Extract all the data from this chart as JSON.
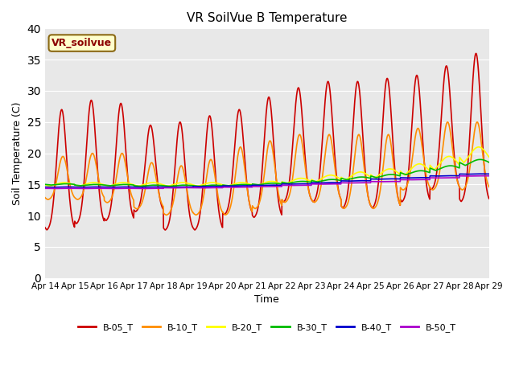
{
  "title": "VR SoilVue B Temperature",
  "xlabel": "Time",
  "ylabel": "Soil Temperature (C)",
  "ylim": [
    0,
    40
  ],
  "yticks": [
    0,
    5,
    10,
    15,
    20,
    25,
    30,
    35,
    40
  ],
  "background_color": "#e8e8e8",
  "legend_label": "VR_soilvue",
  "series": {
    "B-05_T": {
      "color": "#cc0000",
      "linewidth": 1.2
    },
    "B-10_T": {
      "color": "#ff8c00",
      "linewidth": 1.2
    },
    "B-20_T": {
      "color": "#ffff00",
      "linewidth": 1.2
    },
    "B-30_T": {
      "color": "#00bb00",
      "linewidth": 1.2
    },
    "B-40_T": {
      "color": "#0000cc",
      "linewidth": 1.2
    },
    "B-50_T": {
      "color": "#aa00cc",
      "linewidth": 1.2
    }
  },
  "xtick_labels": [
    "Apr 14",
    "Apr 15",
    "Apr 16",
    "Apr 17",
    "Apr 18",
    "Apr 19",
    "Apr 20",
    "Apr 21",
    "Apr 22",
    "Apr 23",
    "Apr 24",
    "Apr 25",
    "Apr 26",
    "Apr 27",
    "Apr 28",
    "Apr 29"
  ],
  "peaks_05": [
    27,
    28.5,
    28,
    24.5,
    25,
    26,
    27,
    29,
    30.5,
    31.5,
    31.5,
    32,
    32.5,
    34,
    36
  ],
  "mins_05": [
    7.5,
    8.5,
    9,
    10.5,
    7.5,
    7.5,
    10,
    9.5,
    12,
    12,
    11,
    11,
    12,
    14,
    12
  ],
  "peaks_10": [
    19.5,
    20,
    20,
    18.5,
    18,
    19,
    21,
    22,
    23,
    23,
    23,
    23,
    24,
    25,
    25
  ],
  "mins_10": [
    12.5,
    12.5,
    12,
    11,
    10,
    10,
    10,
    11,
    12,
    12,
    11,
    11,
    14,
    14,
    14
  ]
}
